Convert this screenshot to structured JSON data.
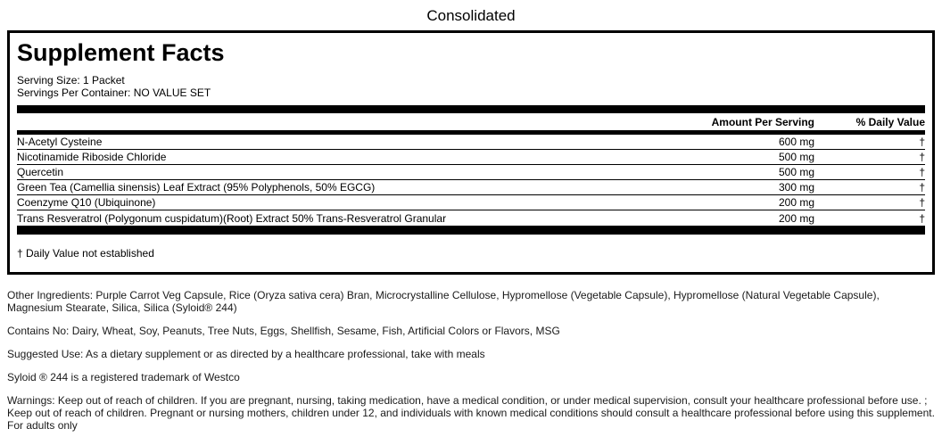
{
  "page": {
    "title": "Consolidated"
  },
  "label": {
    "heading": "Supplement Facts",
    "serving_size": "Serving Size: 1 Packet",
    "servings_per_container": "Servings Per Container: NO VALUE SET",
    "columns": {
      "amount": "Amount Per Serving",
      "daily_value": "% Daily Value"
    },
    "rows": [
      {
        "name": "N-Acetyl Cysteine",
        "amount": "600 mg",
        "dv": "†"
      },
      {
        "name": "Nicotinamide Riboside Chloride",
        "amount": "500 mg",
        "dv": "†"
      },
      {
        "name": "Quercetin",
        "amount": "500 mg",
        "dv": "†"
      },
      {
        "name": "Green Tea (Camellia sinensis) Leaf Extract (95% Polyphenols, 50% EGCG)",
        "amount": "300 mg",
        "dv": "†"
      },
      {
        "name": "Coenzyme Q10 (Ubiquinone)",
        "amount": "200 mg",
        "dv": "†"
      },
      {
        "name": "Trans Resveratrol (Polygonum cuspidatum)(Root) Extract 50% Trans-Resveratrol Granular",
        "amount": "200 mg",
        "dv": "†"
      }
    ],
    "footnote": "† Daily Value not established"
  },
  "notes": {
    "other_ingredients": "Other Ingredients: Purple Carrot Veg Capsule, Rice (Oryza sativa cera) Bran, Microcrystalline Cellulose, Hypromellose (Vegetable Capsule), Hypromellose (Natural Vegetable Capsule), Magnesium Stearate, Silica, Silica (Syloid® 244)",
    "contains_no": "Contains No: Dairy, Wheat, Soy, Peanuts, Tree Nuts, Eggs, Shellfish, Sesame, Fish, Artificial Colors or Flavors, MSG",
    "suggested_use": "Suggested Use: As a dietary supplement or as directed by a healthcare professional, take with meals",
    "trademark": "Syloid ® 244 is a registered trademark of Westco",
    "warnings": "Warnings: Keep out of reach of children. If you are pregnant, nursing, taking medication, have a medical condition, or under medical supervision, consult your healthcare professional before use. ; Keep out of reach of children. Pregnant or nursing mothers, children under 12, and individuals with known medical conditions should consult a healthcare professional before using this supplement. For adults only"
  },
  "colors": {
    "border": "#000000",
    "text": "#000000",
    "background": "#ffffff"
  }
}
